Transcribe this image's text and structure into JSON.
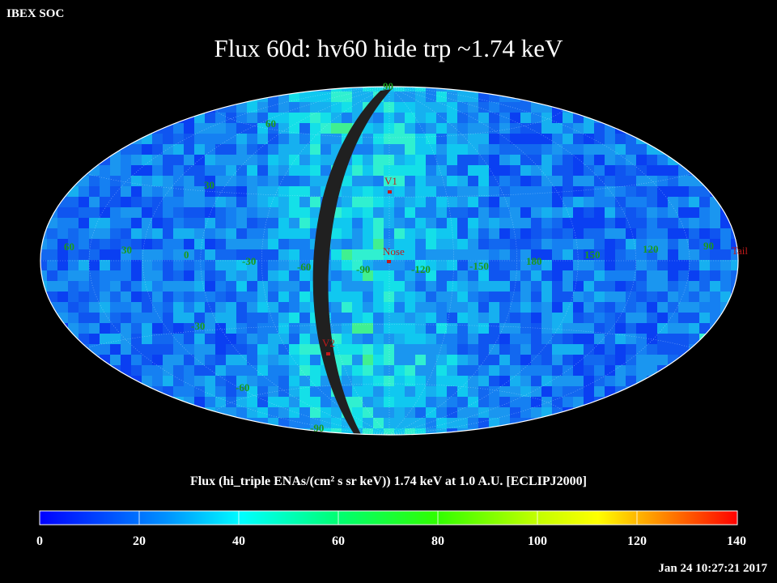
{
  "header": {
    "soc_label": "IBEX SOC",
    "title": "Flux   60d: hv60 hide trp ~1.74 keV"
  },
  "map": {
    "projection": "hammer-aitoff",
    "lat_labels": [
      "90",
      "60",
      "30",
      "0",
      "-30",
      "-60",
      "-90"
    ],
    "lon_labels": [
      "60",
      "30",
      "0",
      "-30",
      "-60",
      "-90",
      "-120",
      "-150",
      "180",
      "150",
      "120",
      "90"
    ],
    "markers": {
      "v1": "V1",
      "nose": "Nose",
      "v2": "V2",
      "tail": "Tail"
    }
  },
  "caption": "Flux (hi_triple ENAs/(cm² s sr keV))  1.74 keV at 1.0 A.U. [ECLIPJ2000]",
  "colorbar": {
    "ticks": [
      "0",
      "20",
      "40",
      "60",
      "80",
      "100",
      "120",
      "140"
    ],
    "min": 0,
    "max": 140,
    "colors": [
      "#0000ff",
      "#00ffff",
      "#00ff60",
      "#60ff00",
      "#ffff00",
      "#ff7000",
      "#ff0000"
    ]
  },
  "timestamp": "Jan 24 10:27:21 2017"
}
